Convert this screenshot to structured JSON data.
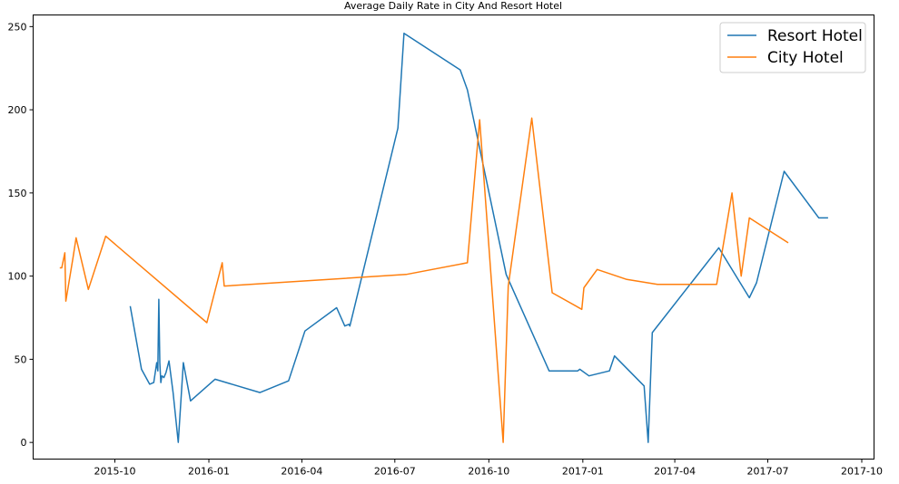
{
  "chart_data": {
    "type": "line",
    "title": "Average Daily Rate in City And Resort Hotel",
    "xlabel": "",
    "ylabel": "",
    "grid": false,
    "legend_position": "top-right",
    "xlim": [
      "2015-07-13",
      "2017-10-13"
    ],
    "ylim": [
      -10,
      257
    ],
    "x_ticks": [
      "2015-10",
      "2016-01",
      "2016-04",
      "2016-07",
      "2016-10",
      "2017-01",
      "2017-04",
      "2017-07",
      "2017-10"
    ],
    "y_ticks": [
      0,
      50,
      100,
      150,
      200,
      250
    ],
    "series": [
      {
        "name": "Resort Hotel",
        "color": "#1f77b4",
        "points": [
          [
            "2015-10-16",
            82
          ],
          [
            "2015-10-27",
            44
          ],
          [
            "2015-11-04",
            35
          ],
          [
            "2015-11-08",
            36
          ],
          [
            "2015-11-11",
            48
          ],
          [
            "2015-11-12",
            43
          ],
          [
            "2015-11-13",
            86
          ],
          [
            "2015-11-14",
            48
          ],
          [
            "2015-11-15",
            36
          ],
          [
            "2015-11-16",
            40
          ],
          [
            "2015-11-18",
            39
          ],
          [
            "2015-11-20",
            42
          ],
          [
            "2015-11-23",
            49
          ],
          [
            "2015-11-27",
            30
          ],
          [
            "2015-12-02",
            0
          ],
          [
            "2015-12-07",
            48
          ],
          [
            "2015-12-14",
            25
          ],
          [
            "2016-01-07",
            38
          ],
          [
            "2016-02-20",
            30
          ],
          [
            "2016-03-19",
            37
          ],
          [
            "2016-04-04",
            67
          ],
          [
            "2016-05-05",
            81
          ],
          [
            "2016-05-13",
            70
          ],
          [
            "2016-05-17",
            71
          ],
          [
            "2016-05-18",
            70
          ],
          [
            "2016-07-04",
            189
          ],
          [
            "2016-07-10",
            246
          ],
          [
            "2016-09-03",
            224
          ],
          [
            "2016-09-10",
            212
          ],
          [
            "2016-10-18",
            101
          ],
          [
            "2016-11-29",
            43
          ],
          [
            "2016-12-27",
            43
          ],
          [
            "2016-12-29",
            44
          ],
          [
            "2017-01-07",
            40
          ],
          [
            "2017-01-27",
            43
          ],
          [
            "2017-02-01",
            52
          ],
          [
            "2017-03-02",
            34
          ],
          [
            "2017-03-06",
            0
          ],
          [
            "2017-03-10",
            66
          ],
          [
            "2017-05-14",
            117
          ],
          [
            "2017-06-13",
            87
          ],
          [
            "2017-06-20",
            96
          ],
          [
            "2017-07-17",
            163
          ],
          [
            "2017-08-20",
            135
          ],
          [
            "2017-08-29",
            135
          ]
        ]
      },
      {
        "name": "City Hotel",
        "color": "#ff7f0e",
        "points": [
          [
            "2015-08-08",
            105
          ],
          [
            "2015-08-10",
            105
          ],
          [
            "2015-08-13",
            114
          ],
          [
            "2015-08-14",
            85
          ],
          [
            "2015-08-21",
            111
          ],
          [
            "2015-08-24",
            123
          ],
          [
            "2015-09-05",
            92
          ],
          [
            "2015-09-22",
            124
          ],
          [
            "2015-12-30",
            72
          ],
          [
            "2016-01-14",
            108
          ],
          [
            "2016-01-16",
            94
          ],
          [
            "2016-07-12",
            101
          ],
          [
            "2016-09-10",
            108
          ],
          [
            "2016-09-22",
            194
          ],
          [
            "2016-10-15",
            0
          ],
          [
            "2016-10-20",
            94
          ],
          [
            "2016-11-12",
            195
          ],
          [
            "2016-12-02",
            90
          ],
          [
            "2016-12-31",
            80
          ],
          [
            "2017-01-02",
            93
          ],
          [
            "2017-01-15",
            104
          ],
          [
            "2017-02-13",
            98
          ],
          [
            "2017-03-15",
            95
          ],
          [
            "2017-05-12",
            95
          ],
          [
            "2017-05-27",
            150
          ],
          [
            "2017-06-05",
            100
          ],
          [
            "2017-06-13",
            135
          ],
          [
            "2017-07-21",
            120
          ]
        ]
      }
    ]
  }
}
